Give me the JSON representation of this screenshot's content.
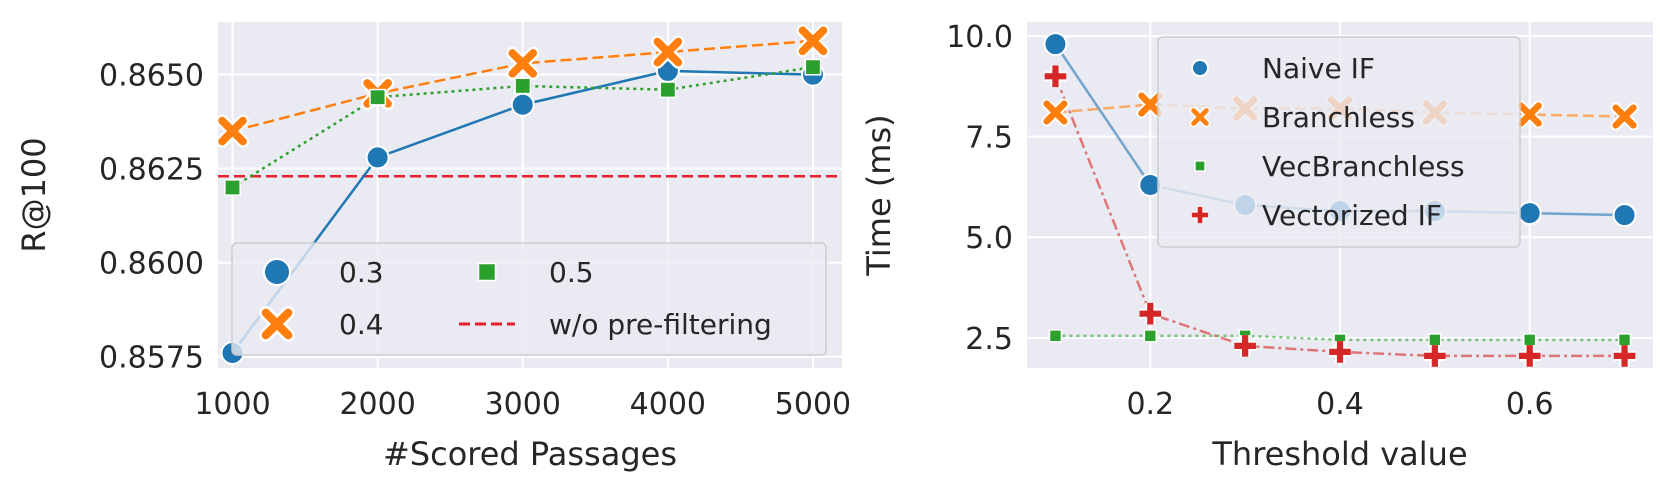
{
  "colors": {
    "blue": "#1f77b4",
    "orange": "#ff7f0e",
    "green": "#2ca02c",
    "red": "#d62728",
    "refline": "#e8202a"
  },
  "chart_data": [
    {
      "type": "line",
      "title": "",
      "xlabel": "#Scored Passages",
      "ylabel": "R@100",
      "grid": true,
      "legend_placement": "lower-right",
      "legend_columns": 2,
      "xlim": [
        900,
        5200
      ],
      "ylim": [
        0.8572,
        0.8664
      ],
      "x": [
        1000,
        2000,
        3000,
        4000,
        5000
      ],
      "x_tick_labels": [
        "1000",
        "2000",
        "3000",
        "4000",
        "5000"
      ],
      "y_ticks": [
        0.8575,
        0.86,
        0.8625,
        0.865
      ],
      "y_tick_labels": [
        "0.8575",
        "0.8600",
        "0.8625",
        "0.8650"
      ],
      "series": [
        {
          "name": "0.3",
          "marker": "circle",
          "linestyle": "solid",
          "color": "#1f77b4",
          "values": [
            0.8576,
            0.8628,
            0.8642,
            0.8651,
            0.865
          ]
        },
        {
          "name": "0.4",
          "marker": "x",
          "linestyle": "dashed",
          "color": "#ff7f0e",
          "values": [
            0.8635,
            0.8645,
            0.8653,
            0.8656,
            0.8659
          ]
        },
        {
          "name": "0.5",
          "marker": "square",
          "linestyle": "dotted",
          "color": "#2ca02c",
          "values": [
            0.862,
            0.8644,
            0.8647,
            0.8646,
            0.8652
          ]
        }
      ],
      "reference_lines": [
        {
          "name": "w/o pre-filtering",
          "y": 0.8623,
          "color": "#e8202a",
          "linestyle": "dashed"
        }
      ]
    },
    {
      "type": "line",
      "title": "",
      "xlabel": "Threshold value",
      "ylabel": "Time (ms)",
      "grid": true,
      "legend_placement": "upper-right",
      "legend_columns": 1,
      "xlim": [
        0.07,
        0.73
      ],
      "ylim": [
        1.75,
        10.35
      ],
      "x": [
        0.1,
        0.2,
        0.3,
        0.4,
        0.5,
        0.6,
        0.7
      ],
      "x_ticks": [
        0.2,
        0.4,
        0.6
      ],
      "x_tick_labels": [
        "0.2",
        "0.4",
        "0.6"
      ],
      "y_ticks": [
        2.5,
        5.0,
        7.5,
        10.0
      ],
      "y_tick_labels": [
        "2.5",
        "5.0",
        "7.5",
        "10.0"
      ],
      "series": [
        {
          "name": "Naive IF",
          "marker": "circle",
          "linestyle": "solid",
          "color": "#1f77b4",
          "values": [
            9.8,
            6.3,
            5.8,
            5.65,
            5.65,
            5.6,
            5.55
          ]
        },
        {
          "name": "Branchless",
          "marker": "x",
          "linestyle": "dashed",
          "color": "#ff7f0e",
          "values": [
            8.1,
            8.3,
            8.2,
            8.2,
            8.1,
            8.05,
            8.0
          ]
        },
        {
          "name": "VecBranchless",
          "marker": "square",
          "linestyle": "dotted",
          "color": "#2ca02c",
          "values": [
            2.55,
            2.55,
            2.55,
            2.45,
            2.45,
            2.45,
            2.45
          ]
        },
        {
          "name": "Vectorized IF",
          "marker": "plus",
          "linestyle": "dashdot",
          "color": "#d62728",
          "values": [
            9.0,
            3.1,
            2.3,
            2.15,
            2.05,
            2.05,
            2.05
          ]
        }
      ]
    }
  ]
}
